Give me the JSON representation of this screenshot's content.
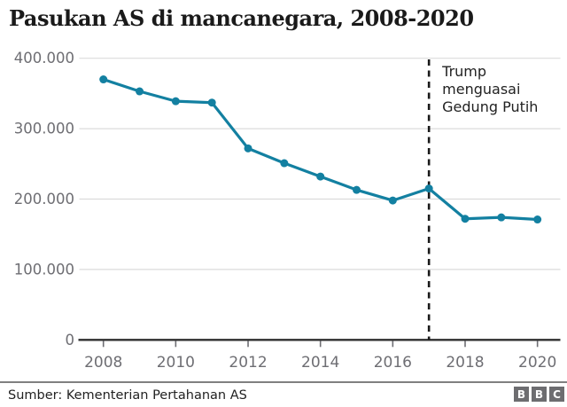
{
  "title": "Pasukan AS di mancanegara, 2008-2020",
  "footer": {
    "source": "Sumber: Kementerian Pertahanan AS",
    "logo_blocks": [
      "B",
      "B",
      "C"
    ]
  },
  "colors": {
    "line": "#1380A1",
    "grid": "#dcdcdc",
    "axis": "#2e2e2e",
    "tick_label": "#6e6e73",
    "annotation_line": "#1a1a1a",
    "title_text": "#1a1a1a"
  },
  "chart_data": {
    "type": "line",
    "title": "Pasukan AS di mancanegara, 2008-2020",
    "x": [
      2008,
      2009,
      2010,
      2011,
      2012,
      2013,
      2014,
      2015,
      2016,
      2017,
      2018,
      2019,
      2020
    ],
    "series": [
      {
        "name": "Pasukan AS di mancanegara",
        "values": [
          370000,
          353000,
          339000,
          337000,
          272000,
          251000,
          232000,
          213000,
          198000,
          215000,
          172000,
          174000,
          171000
        ]
      }
    ],
    "xlabel": "",
    "ylabel": "",
    "ylim": [
      0,
      400000
    ],
    "xlim": [
      2008,
      2020
    ],
    "grid": true,
    "legend": false,
    "x_tick_values": [
      2008,
      2010,
      2012,
      2014,
      2016,
      2018,
      2020
    ],
    "x_tick_labels": [
      "2008",
      "2010",
      "2012",
      "2014",
      "2016",
      "2018",
      "2020"
    ],
    "y_tick_values": [
      0,
      100000,
      200000,
      300000,
      400000
    ],
    "y_tick_labels": [
      "0",
      "100.000",
      "200.000",
      "300.000",
      "400.000"
    ],
    "annotation": {
      "text": "Trump\nmenguasai\nGedung Putih",
      "year": 2017,
      "style": "dashed-vertical-line"
    }
  }
}
